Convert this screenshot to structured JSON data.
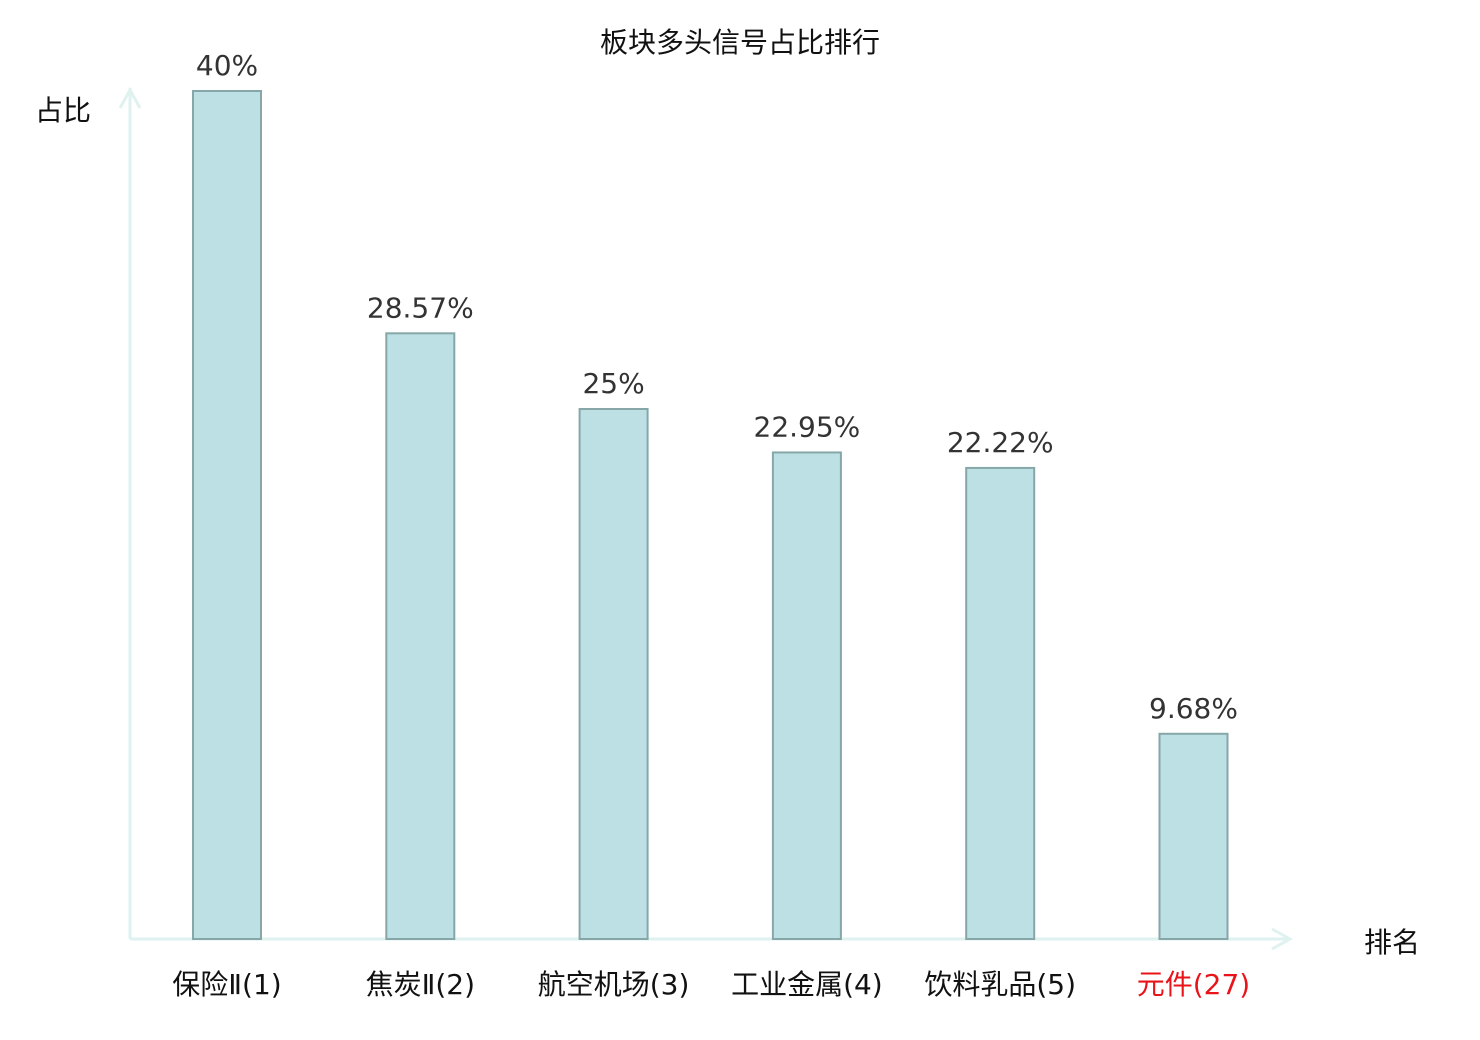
{
  "chart_data": {
    "type": "bar",
    "title": "板块多头信号占比排行",
    "xlabel": "排名",
    "ylabel": "占比",
    "categories": [
      "保险Ⅱ(1)",
      "焦炭Ⅱ(2)",
      "航空机场(3)",
      "工业金属(4)",
      "饮料乳品(5)",
      "元件(27)"
    ],
    "values": [
      40,
      28.57,
      25,
      22.95,
      22.22,
      9.68
    ],
    "value_labels": [
      "40%",
      "28.57%",
      "25%",
      "22.95%",
      "22.22%",
      "9.68%"
    ],
    "category_colors": [
      "#111111",
      "#111111",
      "#111111",
      "#111111",
      "#111111",
      "#e8141a"
    ],
    "ylim": [
      0,
      40
    ],
    "grid": false,
    "bar_fill": "#bce0e3",
    "bar_stroke": "#86a6a8",
    "axis_color": "#dff2f0"
  }
}
